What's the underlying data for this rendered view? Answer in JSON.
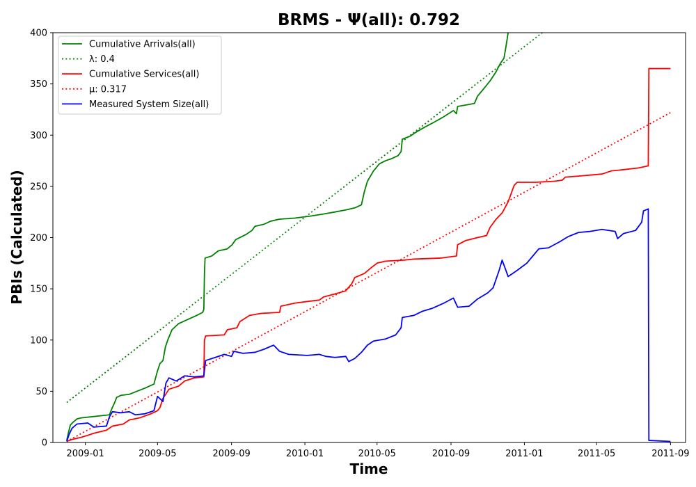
{
  "chart_data": {
    "type": "line",
    "title": "BRMS -  Ψ(all): 0.792",
    "xlabel": "Time",
    "ylabel": "PBIs (Calculated)",
    "x_ticks": [
      "2009-01",
      "2009-05",
      "2009-09",
      "2010-01",
      "2010-05",
      "2010-09",
      "2011-01",
      "2011-05",
      "2011-09"
    ],
    "y_ticks": [
      "0",
      "50",
      "100",
      "150",
      "200",
      "250",
      "300",
      "350",
      "400"
    ],
    "xlim": [
      "2008-11-08",
      "2011-09-26"
    ],
    "ylim": [
      0,
      400
    ],
    "grid": false,
    "legend_position": "upper-left",
    "series": [
      {
        "name": "Cumulative Arrivals(all)",
        "color": "#008000",
        "style": "solid",
        "points": [
          [
            "2008-12-01",
            2
          ],
          [
            "2008-12-04",
            10
          ],
          [
            "2008-12-07",
            17
          ],
          [
            "2008-12-12",
            20
          ],
          [
            "2008-12-18",
            23
          ],
          [
            "2008-12-25",
            24
          ],
          [
            "2009-01-10",
            25
          ],
          [
            "2009-01-25",
            26
          ],
          [
            "2009-02-10",
            27
          ],
          [
            "2009-02-14",
            33
          ],
          [
            "2009-02-18",
            38
          ],
          [
            "2009-02-22",
            44
          ],
          [
            "2009-03-01",
            46
          ],
          [
            "2009-03-15",
            47
          ],
          [
            "2009-04-01",
            51
          ],
          [
            "2009-04-10",
            53
          ],
          [
            "2009-04-25",
            57
          ],
          [
            "2009-05-01",
            70
          ],
          [
            "2009-05-05",
            77
          ],
          [
            "2009-05-10",
            80
          ],
          [
            "2009-05-14",
            93
          ],
          [
            "2009-05-18",
            100
          ],
          [
            "2009-05-25",
            110
          ],
          [
            "2009-06-05",
            116
          ],
          [
            "2009-06-20",
            120
          ],
          [
            "2009-07-05",
            124
          ],
          [
            "2009-07-15",
            127
          ],
          [
            "2009-07-17",
            130
          ],
          [
            "2009-07-18",
            165
          ],
          [
            "2009-07-19",
            180
          ],
          [
            "2009-07-30",
            182
          ],
          [
            "2009-08-10",
            187
          ],
          [
            "2009-08-25",
            189
          ],
          [
            "2009-09-02",
            193
          ],
          [
            "2009-09-08",
            198
          ],
          [
            "2009-09-25",
            203
          ],
          [
            "2009-10-05",
            207
          ],
          [
            "2009-10-10",
            211
          ],
          [
            "2009-10-25",
            213
          ],
          [
            "2009-11-05",
            216
          ],
          [
            "2009-11-20",
            218
          ],
          [
            "2009-12-15",
            219
          ],
          [
            "2010-01-10",
            221
          ],
          [
            "2010-02-01",
            223
          ],
          [
            "2010-02-20",
            225
          ],
          [
            "2010-03-10",
            227
          ],
          [
            "2010-03-25",
            229
          ],
          [
            "2010-04-05",
            232
          ],
          [
            "2010-04-10",
            245
          ],
          [
            "2010-04-15",
            255
          ],
          [
            "2010-04-25",
            265
          ],
          [
            "2010-05-05",
            272
          ],
          [
            "2010-05-15",
            275
          ],
          [
            "2010-05-25",
            277
          ],
          [
            "2010-06-05",
            280
          ],
          [
            "2010-06-10",
            284
          ],
          [
            "2010-06-12",
            296
          ],
          [
            "2010-06-25",
            299
          ],
          [
            "2010-07-05",
            303
          ],
          [
            "2010-07-20",
            308
          ],
          [
            "2010-08-05",
            313
          ],
          [
            "2010-08-20",
            318
          ],
          [
            "2010-09-05",
            324
          ],
          [
            "2010-09-10",
            321
          ],
          [
            "2010-09-12",
            328
          ],
          [
            "2010-10-01",
            330
          ],
          [
            "2010-10-10",
            331
          ],
          [
            "2010-10-15",
            338
          ],
          [
            "2010-10-25",
            345
          ],
          [
            "2010-11-05",
            353
          ],
          [
            "2010-11-15",
            362
          ],
          [
            "2010-11-22",
            370
          ],
          [
            "2010-11-28",
            375
          ],
          [
            "2010-12-01",
            385
          ],
          [
            "2010-12-05",
            400
          ],
          [
            "2010-12-07",
            412
          ]
        ]
      },
      {
        "name": "λ: 0.4",
        "color": "#008000",
        "style": "dotted",
        "points": [
          [
            "2008-12-01",
            39
          ],
          [
            "2011-02-26",
            412
          ]
        ]
      },
      {
        "name": "Cumulative Services(all)",
        "color": "#ff0000",
        "style": "solid",
        "points": [
          [
            "2008-12-01",
            1
          ],
          [
            "2008-12-10",
            3
          ],
          [
            "2008-12-25",
            5
          ],
          [
            "2009-01-05",
            7
          ],
          [
            "2009-01-15",
            9
          ],
          [
            "2009-02-05",
            12
          ],
          [
            "2009-02-15",
            16
          ],
          [
            "2009-03-05",
            18
          ],
          [
            "2009-03-15",
            22
          ],
          [
            "2009-04-01",
            24
          ],
          [
            "2009-04-20",
            28
          ],
          [
            "2009-05-01",
            31
          ],
          [
            "2009-05-05",
            34
          ],
          [
            "2009-05-10",
            43
          ],
          [
            "2009-05-20",
            52
          ],
          [
            "2009-06-05",
            55
          ],
          [
            "2009-06-15",
            60
          ],
          [
            "2009-07-01",
            63
          ],
          [
            "2009-07-17",
            64
          ],
          [
            "2009-07-18",
            100
          ],
          [
            "2009-07-20",
            104
          ],
          [
            "2009-08-20",
            105
          ],
          [
            "2009-08-25",
            110
          ],
          [
            "2009-09-10",
            112
          ],
          [
            "2009-09-15",
            118
          ],
          [
            "2009-10-01",
            124
          ],
          [
            "2009-10-20",
            126
          ],
          [
            "2009-11-20",
            127
          ],
          [
            "2009-11-22",
            133
          ],
          [
            "2009-12-15",
            136
          ],
          [
            "2010-01-10",
            138
          ],
          [
            "2010-01-25",
            139
          ],
          [
            "2010-02-01",
            142
          ],
          [
            "2010-02-20",
            145
          ],
          [
            "2010-03-10",
            148
          ],
          [
            "2010-03-20",
            155
          ],
          [
            "2010-03-25",
            161
          ],
          [
            "2010-04-10",
            165
          ],
          [
            "2010-04-20",
            170
          ],
          [
            "2010-05-01",
            175
          ],
          [
            "2010-05-15",
            177
          ],
          [
            "2010-06-15",
            178
          ],
          [
            "2010-07-01",
            179
          ],
          [
            "2010-08-15",
            180
          ],
          [
            "2010-09-10",
            182
          ],
          [
            "2010-09-12",
            193
          ],
          [
            "2010-09-25",
            197
          ],
          [
            "2010-10-15",
            200
          ],
          [
            "2010-10-30",
            202
          ],
          [
            "2010-11-05",
            210
          ],
          [
            "2010-11-15",
            218
          ],
          [
            "2010-11-25",
            224
          ],
          [
            "2010-12-05",
            235
          ],
          [
            "2010-12-15",
            251
          ],
          [
            "2010-12-20",
            254
          ],
          [
            "2011-01-20",
            254
          ],
          [
            "2011-02-20",
            255
          ],
          [
            "2011-03-05",
            256
          ],
          [
            "2011-03-10",
            259
          ],
          [
            "2011-04-01",
            260
          ],
          [
            "2011-04-20",
            261
          ],
          [
            "2011-05-10",
            262
          ],
          [
            "2011-05-25",
            265
          ],
          [
            "2011-06-10",
            266
          ],
          [
            "2011-07-10",
            268
          ],
          [
            "2011-07-26",
            270
          ],
          [
            "2011-07-27",
            365
          ],
          [
            "2011-09-01",
            365
          ]
        ]
      },
      {
        "name": "μ: 0.317",
        "color": "#ff0000",
        "style": "dotted",
        "points": [
          [
            "2008-12-01",
            1
          ],
          [
            "2011-09-01",
            322
          ]
        ]
      },
      {
        "name": "Measured System Size(all)",
        "color": "#0000ff",
        "style": "solid",
        "points": [
          [
            "2008-12-01",
            1
          ],
          [
            "2008-12-05",
            8
          ],
          [
            "2008-12-10",
            14
          ],
          [
            "2008-12-18",
            18
          ],
          [
            "2009-01-05",
            19
          ],
          [
            "2009-01-15",
            15
          ],
          [
            "2009-02-05",
            16
          ],
          [
            "2009-02-10",
            25
          ],
          [
            "2009-02-15",
            30
          ],
          [
            "2009-03-01",
            29
          ],
          [
            "2009-03-15",
            30
          ],
          [
            "2009-03-25",
            27
          ],
          [
            "2009-04-10",
            28
          ],
          [
            "2009-04-25",
            31
          ],
          [
            "2009-05-01",
            45
          ],
          [
            "2009-05-10",
            40
          ],
          [
            "2009-05-15",
            58
          ],
          [
            "2009-05-20",
            63
          ],
          [
            "2009-06-01",
            60
          ],
          [
            "2009-06-15",
            65
          ],
          [
            "2009-07-01",
            64
          ],
          [
            "2009-07-17",
            65
          ],
          [
            "2009-07-20",
            80
          ],
          [
            "2009-08-05",
            83
          ],
          [
            "2009-08-20",
            86
          ],
          [
            "2009-09-01",
            84
          ],
          [
            "2009-09-05",
            89
          ],
          [
            "2009-09-20",
            87
          ],
          [
            "2009-10-10",
            88
          ],
          [
            "2009-10-25",
            91
          ],
          [
            "2009-11-10",
            95
          ],
          [
            "2009-11-20",
            89
          ],
          [
            "2009-12-05",
            86
          ],
          [
            "2010-01-05",
            85
          ],
          [
            "2010-01-25",
            86
          ],
          [
            "2010-02-05",
            84
          ],
          [
            "2010-02-20",
            83
          ],
          [
            "2010-03-10",
            84
          ],
          [
            "2010-03-15",
            79
          ],
          [
            "2010-03-25",
            82
          ],
          [
            "2010-04-05",
            88
          ],
          [
            "2010-04-15",
            95
          ],
          [
            "2010-04-25",
            99
          ],
          [
            "2010-05-15",
            101
          ],
          [
            "2010-06-01",
            105
          ],
          [
            "2010-06-10",
            112
          ],
          [
            "2010-06-12",
            122
          ],
          [
            "2010-07-01",
            124
          ],
          [
            "2010-07-15",
            128
          ],
          [
            "2010-08-01",
            131
          ],
          [
            "2010-08-20",
            136
          ],
          [
            "2010-09-05",
            141
          ],
          [
            "2010-09-12",
            132
          ],
          [
            "2010-10-01",
            133
          ],
          [
            "2010-10-15",
            140
          ],
          [
            "2010-11-01",
            146
          ],
          [
            "2010-11-10",
            151
          ],
          [
            "2010-11-20",
            168
          ],
          [
            "2010-11-25",
            178
          ],
          [
            "2010-12-05",
            162
          ],
          [
            "2010-12-20",
            168
          ],
          [
            "2011-01-05",
            175
          ],
          [
            "2011-01-15",
            182
          ],
          [
            "2011-01-25",
            189
          ],
          [
            "2011-02-10",
            190
          ],
          [
            "2011-03-01",
            196
          ],
          [
            "2011-03-15",
            201
          ],
          [
            "2011-04-01",
            205
          ],
          [
            "2011-04-20",
            206
          ],
          [
            "2011-05-10",
            208
          ],
          [
            "2011-06-01",
            206
          ],
          [
            "2011-06-05",
            199
          ],
          [
            "2011-06-15",
            204
          ],
          [
            "2011-07-05",
            207
          ],
          [
            "2011-07-15",
            215
          ],
          [
            "2011-07-18",
            226
          ],
          [
            "2011-07-26",
            228
          ],
          [
            "2011-07-27",
            2
          ],
          [
            "2011-09-01",
            1
          ]
        ]
      }
    ]
  }
}
